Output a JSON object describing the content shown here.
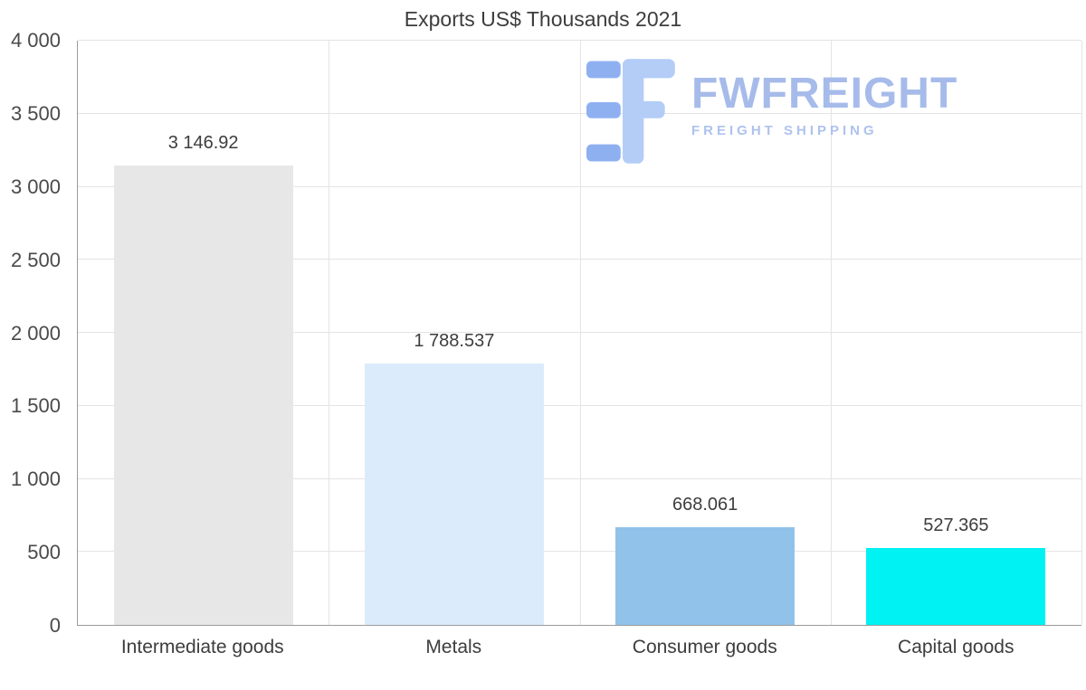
{
  "logo": {
    "name": "FWFREIGHT",
    "tagline": "FREIGHT SHIPPING",
    "mark_color_light": "#b3cdf7",
    "mark_color_dark": "#8fb0f0"
  },
  "chart_data": {
    "type": "bar",
    "title": "Exports US$ Thousands 2021",
    "categories": [
      "Intermediate goods",
      "Metals",
      "Consumer goods",
      "Capital goods"
    ],
    "values": [
      3146.92,
      1788.537,
      668.061,
      527.365
    ],
    "value_labels": [
      "3 146.92",
      "1 788.537",
      "668.061",
      "527.365"
    ],
    "bar_colors": [
      "#e7e7e7",
      "#dcebfc",
      "#90c2ea",
      "#00f2f2"
    ],
    "xlabel": "",
    "ylabel": "",
    "ylim": [
      0,
      4000
    ],
    "ytick_step": 500,
    "ytick_labels": [
      "0",
      "500",
      "1 000",
      "1 500",
      "2 000",
      "2 500",
      "3 000",
      "3 500",
      "4 000"
    ],
    "grid": true,
    "legend": false
  }
}
